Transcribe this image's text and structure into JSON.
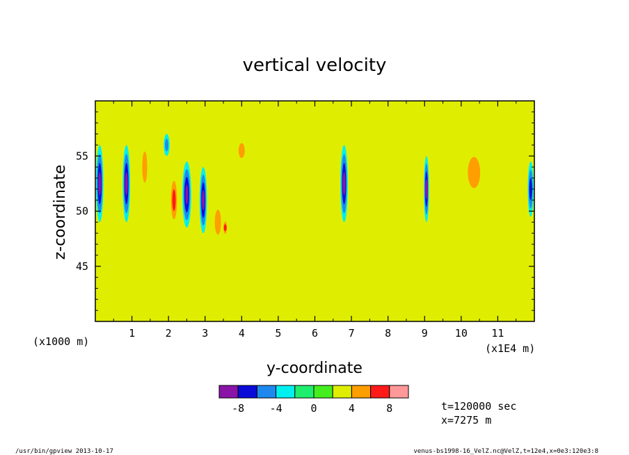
{
  "chart_data": {
    "type": "heatmap",
    "title": "vertical velocity",
    "xlabel": "y-coordinate",
    "ylabel": "z-coordinate",
    "x_unit_label": "(x1E4 m)",
    "y_unit_label": "(x1000 m)",
    "xlim": [
      0,
      12
    ],
    "ylim": [
      40,
      60
    ],
    "x_ticks": [
      1,
      2,
      3,
      4,
      5,
      6,
      7,
      8,
      9,
      10,
      11
    ],
    "x_tick_labels": [
      "1",
      "2",
      "3",
      "4",
      "5",
      "6",
      "7",
      "8",
      "9",
      "10",
      "11"
    ],
    "y_ticks": [
      45,
      50,
      55
    ],
    "y_tick_labels": [
      "45",
      "50",
      "55"
    ],
    "background_level": 2,
    "features": [
      {
        "y": 0.12,
        "z": 52.5,
        "value": -9,
        "wy": 0.1,
        "wz": 3.5
      },
      {
        "y": 0.28,
        "z": 47.5,
        "value": 3,
        "wy": 0.1,
        "wz": 1.0
      },
      {
        "y": 0.85,
        "z": 52.5,
        "value": -9,
        "wy": 0.1,
        "wz": 3.5
      },
      {
        "y": 1.35,
        "z": 54.0,
        "value": 4,
        "wy": 0.12,
        "wz": 2.5
      },
      {
        "y": 1.95,
        "z": 56.0,
        "value": -4,
        "wy": 0.08,
        "wz": 1.0
      },
      {
        "y": 2.15,
        "z": 51.0,
        "value": 7,
        "wy": 0.12,
        "wz": 2.5
      },
      {
        "y": 2.5,
        "z": 51.5,
        "value": -9,
        "wy": 0.12,
        "wz": 3.0
      },
      {
        "y": 2.95,
        "z": 51.0,
        "value": -9,
        "wy": 0.1,
        "wz": 3.0
      },
      {
        "y": 3.35,
        "z": 49.0,
        "value": 5,
        "wy": 0.15,
        "wz": 2.0
      },
      {
        "y": 3.55,
        "z": 48.5,
        "value": 7,
        "wy": 0.07,
        "wz": 0.8
      },
      {
        "y": 4.0,
        "z": 55.5,
        "value": 5,
        "wy": 0.15,
        "wz": 1.2
      },
      {
        "y": 5.2,
        "z": 54.0,
        "value": 3,
        "wy": 0.25,
        "wz": 2.5
      },
      {
        "y": 6.8,
        "z": 52.5,
        "value": -8,
        "wy": 0.1,
        "wz": 3.5
      },
      {
        "y": 7.6,
        "z": 53.5,
        "value": 3,
        "wy": 0.25,
        "wz": 3.0
      },
      {
        "y": 8.3,
        "z": 52.5,
        "value": 3,
        "wy": 0.25,
        "wz": 2.5
      },
      {
        "y": 9.05,
        "z": 52.0,
        "value": -8,
        "wy": 0.07,
        "wz": 3.0
      },
      {
        "y": 9.6,
        "z": 53.0,
        "value": 3,
        "wy": 0.2,
        "wz": 2.0
      },
      {
        "y": 10.35,
        "z": 53.5,
        "value": 4,
        "wy": 0.3,
        "wz": 2.5
      },
      {
        "y": 11.15,
        "z": 52.0,
        "value": 3,
        "wy": 0.2,
        "wz": 2.0
      },
      {
        "y": 11.9,
        "z": 52.0,
        "value": -6,
        "wy": 0.08,
        "wz": 2.5
      }
    ],
    "colorbar": {
      "levels": [
        -10,
        -8,
        -6,
        -4,
        -2,
        0,
        2,
        4,
        6,
        8,
        10
      ],
      "colors": [
        "#8a14a8",
        "#0b0bd8",
        "#1e88ee",
        "#00f0f0",
        "#1eee6e",
        "#44ee1e",
        "#dfee00",
        "#ff9e00",
        "#ff1a1a",
        "#ff9999"
      ],
      "tick_labels": [
        "-8",
        "-4",
        "0",
        "4",
        "8"
      ]
    },
    "annotations": {
      "time": "t=120000 sec",
      "position": "x=7275 m"
    }
  },
  "footer": {
    "left": "/usr/bin/gpview  2013-10-17",
    "right": "venus-bs1998-16_VelZ.nc@VelZ,t=12e4,x=0e3:120e3:8"
  }
}
